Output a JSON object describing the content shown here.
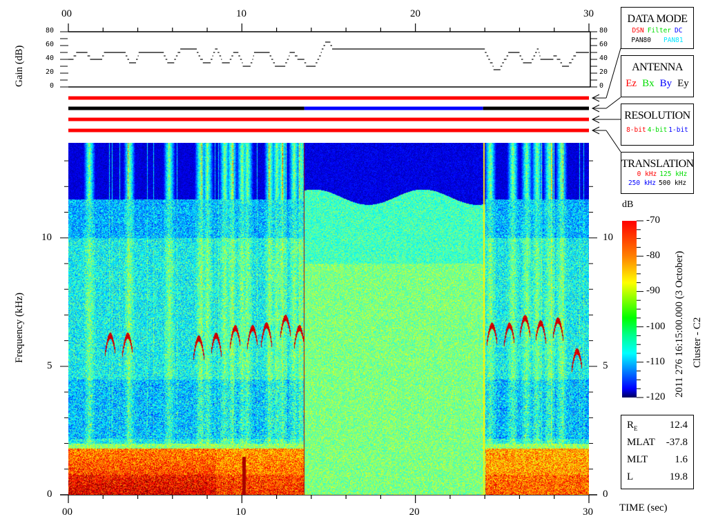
{
  "chart_data": {
    "type": "heatmap",
    "gain_panel": {
      "ylabel": "Gain (dB)",
      "ylim": [
        0,
        80
      ],
      "yticks": [
        "80",
        "60",
        "40",
        "20",
        "0"
      ],
      "series": [
        [
          0,
          0.3,
          40
        ],
        [
          0.3,
          0.45,
          45
        ],
        [
          0.45,
          1.1,
          50
        ],
        [
          1.1,
          1.25,
          45
        ],
        [
          1.25,
          1.95,
          40
        ],
        [
          1.95,
          2.05,
          45
        ],
        [
          2.05,
          3.3,
          50
        ],
        [
          3.3,
          3.4,
          45
        ],
        [
          3.4,
          3.5,
          40
        ],
        [
          3.5,
          3.9,
          35
        ],
        [
          3.9,
          4.0,
          40
        ],
        [
          4.0,
          4.05,
          45
        ],
        [
          4.05,
          5.5,
          50
        ],
        [
          5.5,
          5.6,
          45
        ],
        [
          5.6,
          5.7,
          40
        ],
        [
          5.7,
          6.1,
          35
        ],
        [
          6.1,
          6.2,
          40
        ],
        [
          6.2,
          6.3,
          45
        ],
        [
          6.3,
          6.45,
          50
        ],
        [
          6.45,
          7.4,
          55
        ],
        [
          7.4,
          7.5,
          50
        ],
        [
          7.5,
          7.6,
          45
        ],
        [
          7.6,
          7.75,
          40
        ],
        [
          7.75,
          8.2,
          35
        ],
        [
          8.2,
          8.3,
          40
        ],
        [
          8.3,
          8.35,
          45
        ],
        [
          8.35,
          8.45,
          50
        ],
        [
          8.45,
          8.6,
          55
        ],
        [
          8.6,
          8.7,
          50
        ],
        [
          8.7,
          8.8,
          45
        ],
        [
          8.8,
          8.85,
          40
        ],
        [
          8.85,
          9.3,
          35
        ],
        [
          9.3,
          9.4,
          40
        ],
        [
          9.4,
          9.5,
          45
        ],
        [
          9.5,
          9.8,
          50
        ],
        [
          9.8,
          9.9,
          45
        ],
        [
          9.9,
          10,
          40
        ],
        [
          10,
          10.05,
          35
        ],
        [
          10.05,
          10.5,
          30
        ],
        [
          10.5,
          10.6,
          35
        ],
        [
          10.6,
          10.65,
          40
        ],
        [
          10.65,
          10.7,
          45
        ],
        [
          10.7,
          11.6,
          50
        ],
        [
          11.6,
          11.7,
          45
        ],
        [
          11.7,
          11.8,
          40
        ],
        [
          11.8,
          11.9,
          35
        ],
        [
          11.9,
          12.5,
          30
        ],
        [
          12.5,
          12.6,
          35
        ],
        [
          12.6,
          12.7,
          40
        ],
        [
          12.7,
          12.75,
          45
        ],
        [
          12.75,
          13.05,
          50
        ],
        [
          13.05,
          13.2,
          45
        ],
        [
          13.2,
          13.6,
          40
        ],
        [
          13.6,
          13.7,
          35
        ],
        [
          13.7,
          14.25,
          30
        ],
        [
          14.25,
          14.35,
          35
        ],
        [
          14.35,
          14.45,
          40
        ],
        [
          14.45,
          14.55,
          45
        ],
        [
          14.55,
          14.6,
          50
        ],
        [
          14.6,
          14.7,
          55
        ],
        [
          14.7,
          14.8,
          60
        ],
        [
          14.8,
          15.1,
          65
        ],
        [
          15.1,
          15.2,
          60
        ],
        [
          15.2,
          24.0,
          55
        ],
        [
          24.0,
          24.1,
          50
        ],
        [
          24.1,
          24.2,
          45
        ],
        [
          24.2,
          24.3,
          40
        ],
        [
          24.3,
          24.45,
          35
        ],
        [
          24.45,
          24.5,
          30
        ],
        [
          24.5,
          24.9,
          25
        ],
        [
          24.9,
          25.0,
          30
        ],
        [
          25.0,
          25.1,
          35
        ],
        [
          25.1,
          25.25,
          40
        ],
        [
          25.25,
          25.35,
          45
        ],
        [
          25.35,
          26.0,
          50
        ],
        [
          26.0,
          26.1,
          45
        ],
        [
          26.1,
          26.2,
          40
        ],
        [
          26.2,
          26.7,
          35
        ],
        [
          26.7,
          26.8,
          40
        ],
        [
          26.8,
          26.9,
          45
        ],
        [
          26.9,
          27.0,
          50
        ],
        [
          27.0,
          27.1,
          55
        ],
        [
          27.1,
          27.15,
          50
        ],
        [
          27.15,
          27.2,
          45
        ],
        [
          27.2,
          27.95,
          40
        ],
        [
          27.95,
          28.15,
          45
        ],
        [
          28.15,
          28.35,
          40
        ],
        [
          28.35,
          28.45,
          35
        ],
        [
          28.45,
          28.85,
          30
        ],
        [
          28.85,
          29.0,
          35
        ],
        [
          29.0,
          29.1,
          40
        ],
        [
          29.1,
          29.25,
          45
        ],
        [
          29.25,
          30,
          50
        ]
      ]
    },
    "status_bars": [
      {
        "legend": "DATA MODE",
        "segments": [
          [
            0,
            30,
            "#ff0000"
          ]
        ]
      },
      {
        "legend": "ANTENNA",
        "segments": [
          [
            0,
            13.6,
            "#000000"
          ],
          [
            13.6,
            23.9,
            "#0000ff"
          ],
          [
            23.9,
            30,
            "#000000"
          ]
        ]
      },
      {
        "legend": "RESOLUTION",
        "segments": [
          [
            0,
            30,
            "#ff0000"
          ]
        ]
      },
      {
        "legend": "TRANSLATION",
        "segments": [
          [
            0,
            30,
            "#ff0000"
          ]
        ]
      }
    ],
    "spectrogram": {
      "ylabel": "Frequency (kHz)",
      "xlabel": "TIME (sec)",
      "xlim": [
        0,
        30
      ],
      "ylim": [
        0,
        13.7
      ],
      "xticks": [
        "00",
        "10",
        "20",
        "30"
      ],
      "yticks": [
        "0",
        "5",
        "10"
      ],
      "colorbar": {
        "unit": "dB",
        "range": [
          -120,
          -70
        ],
        "ticks": [
          "-70",
          "-80",
          "-90",
          "-100",
          "-110",
          "-120"
        ],
        "colormap": "jet"
      }
    }
  },
  "legends": {
    "data_mode": {
      "title": "DATA MODE",
      "items": [
        {
          "label": "DSN",
          "color": "#ff0000"
        },
        {
          "label": "Filter",
          "color": "#00dd00"
        },
        {
          "label": "DC",
          "color": "#0000ff"
        },
        {
          "label": "PAN80",
          "color": "#000000"
        },
        {
          "label": "PAN81",
          "color": "#00e5ff"
        }
      ]
    },
    "antenna": {
      "title": "ANTENNA",
      "items": [
        {
          "label": "Ez",
          "color": "#ff0000"
        },
        {
          "label": "Bx",
          "color": "#00dd00"
        },
        {
          "label": "By",
          "color": "#0000ff"
        },
        {
          "label": "Ey",
          "color": "#000000"
        }
      ]
    },
    "resolution": {
      "title": "RESOLUTION",
      "items": [
        {
          "label": "8-bit",
          "color": "#ff0000"
        },
        {
          "label": "4-bit",
          "color": "#00dd00"
        },
        {
          "label": "1-bit",
          "color": "#0000ff"
        }
      ]
    },
    "translation": {
      "title": "TRANSLATION",
      "items": [
        {
          "label": "0 kHz",
          "color": "#ff0000"
        },
        {
          "label": "125 kHz",
          "color": "#00dd00"
        },
        {
          "label": "250 kHz",
          "color": "#0000ff"
        },
        {
          "label": "500 kHz",
          "color": "#000000"
        }
      ]
    }
  },
  "caption": {
    "line1": "2011 276 16:15:00.000 (3 October)",
    "line2": "Cluster - C2"
  },
  "orbit_info": [
    {
      "label": "R",
      "sub": "E",
      "value": "12.4"
    },
    {
      "label": "MLAT",
      "sub": "",
      "value": "-37.8"
    },
    {
      "label": "MLT",
      "sub": "",
      "value": "1.6"
    },
    {
      "label": "L",
      "sub": "",
      "value": "19.8"
    }
  ]
}
